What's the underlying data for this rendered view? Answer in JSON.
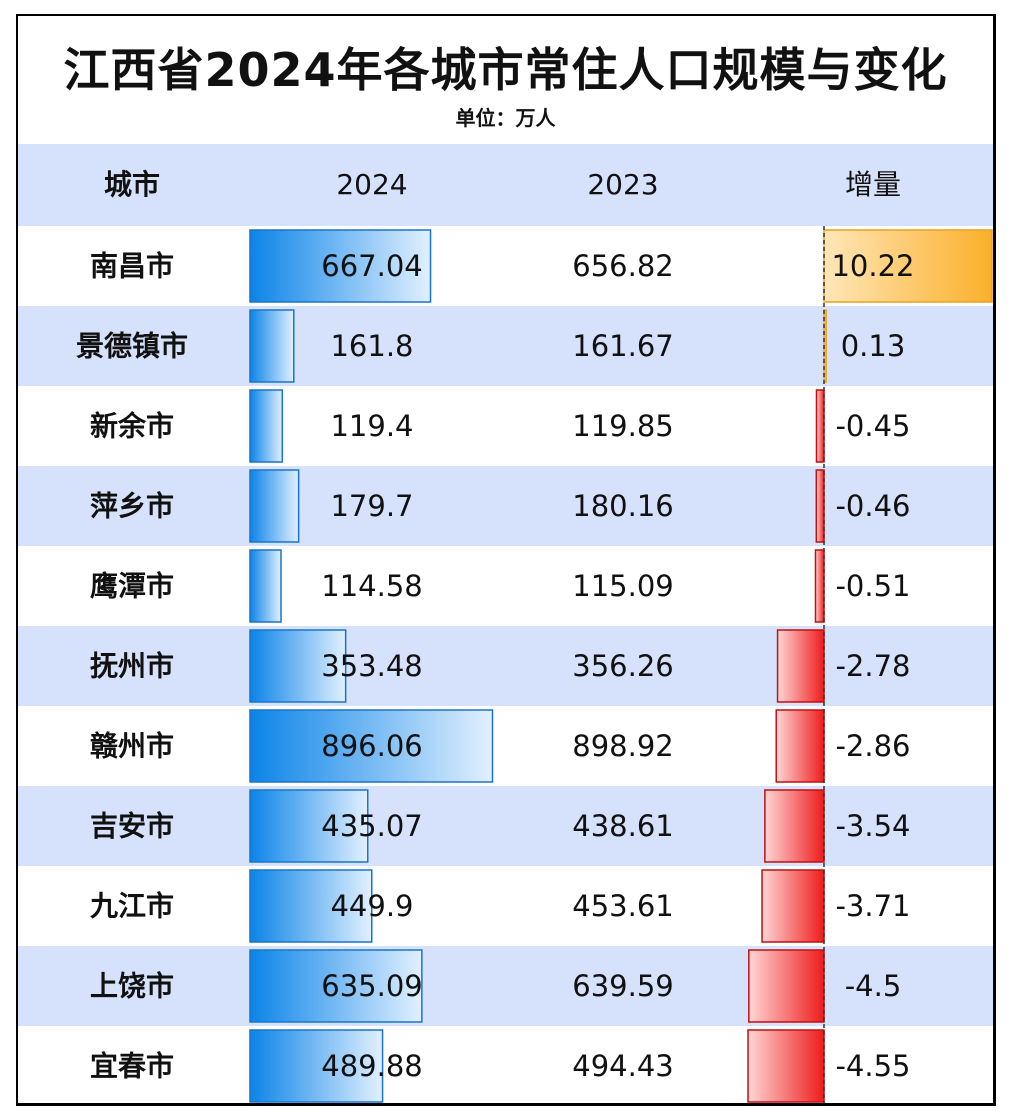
{
  "title": "江西省2024年各城市常住人口规模与变化",
  "subtitle": "单位：万人",
  "headers": {
    "city": "城市",
    "col2024": "2024",
    "col2023": "2023",
    "change": "增量"
  },
  "colors": {
    "row_alt": "#d6e2fb",
    "bar_blue_start": "#0b84e8",
    "bar_blue_end": "#e2f0ff",
    "bar_blue_stroke": "#1874cc",
    "pos_start": "#ffe6b8",
    "pos_end": "#fbb02a",
    "pos_stroke": "#e9a020",
    "neg_start": "#ffd6d6",
    "neg_end": "#ee1c1c",
    "neg_stroke": "#c01010"
  },
  "chart_data": {
    "type": "table",
    "title": "江西省2024年各城市常住人口规模与变化",
    "unit": "单位：万人",
    "columns": [
      "城市",
      "2024",
      "2023",
      "增量"
    ],
    "rows": [
      {
        "city": "南昌市",
        "v2024": "667.04",
        "v2023": "656.82",
        "change": "10.22"
      },
      {
        "city": "景德镇市",
        "v2024": "161.8",
        "v2023": "161.67",
        "change": "0.13"
      },
      {
        "city": "新余市",
        "v2024": "119.4",
        "v2023": "119.85",
        "change": "-0.45"
      },
      {
        "city": "萍乡市",
        "v2024": "179.7",
        "v2023": "180.16",
        "change": "-0.46"
      },
      {
        "city": "鹰潭市",
        "v2024": "114.58",
        "v2023": "115.09",
        "change": "-0.51"
      },
      {
        "city": "抚州市",
        "v2024": "353.48",
        "v2023": "356.26",
        "change": "-2.78"
      },
      {
        "city": "赣州市",
        "v2024": "896.06",
        "v2023": "898.92",
        "change": "-2.86"
      },
      {
        "city": "吉安市",
        "v2024": "435.07",
        "v2023": "438.61",
        "change": "-3.54"
      },
      {
        "city": "九江市",
        "v2024": "449.9",
        "v2023": "453.61",
        "change": "-3.71"
      },
      {
        "city": "上饶市",
        "v2024": "635.09",
        "v2023": "639.59",
        "change": "-4.5"
      },
      {
        "city": "宜春市",
        "v2024": "489.88",
        "v2023": "494.43",
        "change": "-4.55"
      }
    ]
  }
}
